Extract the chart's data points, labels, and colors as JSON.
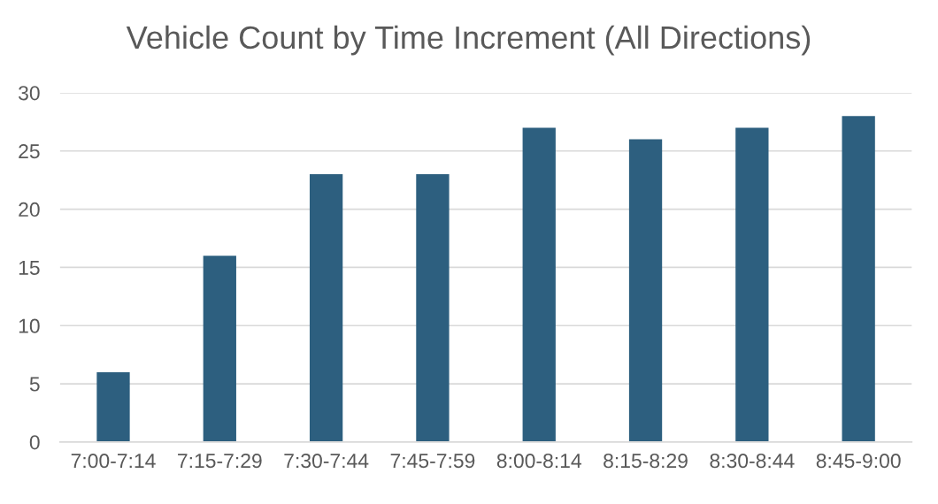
{
  "chart_data": {
    "type": "bar",
    "title": "Vehicle Count by Time Increment (All Directions)",
    "categories": [
      "7:00-7:14",
      "7:15-7:29",
      "7:30-7:44",
      "7:45-7:59",
      "8:00-8:14",
      "8:15-8:29",
      "8:30-8:44",
      "8:45-9:00"
    ],
    "values": [
      6,
      16,
      23,
      23,
      27,
      26,
      27,
      28
    ],
    "color": "#2d5f7f",
    "ylim": [
      0,
      30
    ],
    "yticks": [
      0,
      5,
      10,
      15,
      20,
      25,
      30
    ],
    "grid": "y"
  }
}
